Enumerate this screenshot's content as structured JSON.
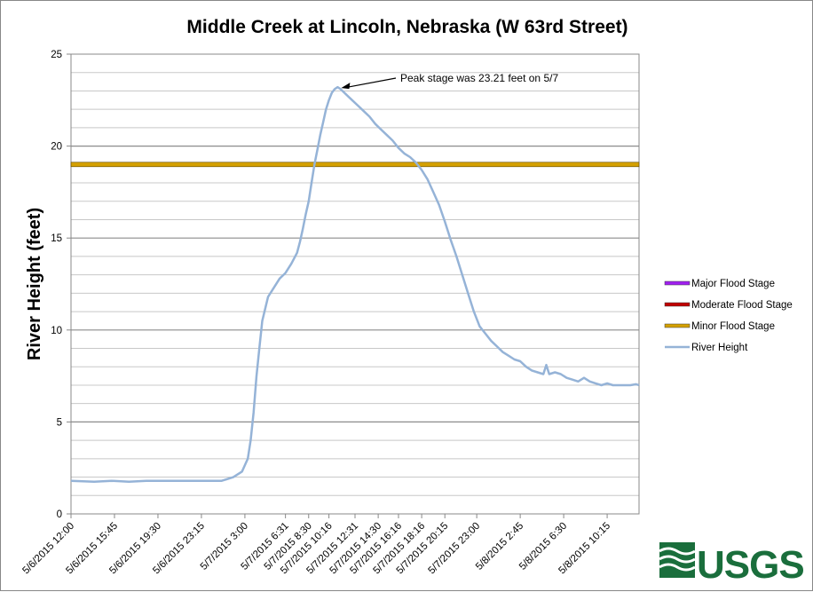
{
  "chart_data": {
    "type": "line",
    "title": "Middle Creek at Lincoln, Nebraska (W 63rd Street)",
    "ylabel": "River Height (feet)",
    "xlabel": "",
    "ylim": [
      0,
      25
    ],
    "y_major_ticks": [
      0,
      5,
      10,
      15,
      20,
      25
    ],
    "y_minor_step": 1,
    "grid": true,
    "x_tick_labels": [
      "5/6/2015 12:00",
      "5/6/2015 15:45",
      "5/6/2015 19:30",
      "5/6/2015 23:15",
      "5/7/2015 3:00",
      "5/7/2015 6:31",
      "5/7/2015 8:30",
      "5/7/2015 10:16",
      "5/7/2015 12:31",
      "5/7/2015 14:30",
      "5/7/2015 16:16",
      "5/7/2015 18:16",
      "5/7/2015 20:15",
      "5/7/2015 23:00",
      "5/8/2015 2:45",
      "5/8/2015 6:30",
      "5/8/2015 10:15"
    ],
    "x_tick_index": [
      0,
      15,
      30,
      45,
      60,
      74,
      82,
      89,
      98,
      106,
      113,
      121,
      129,
      140,
      155,
      170,
      185
    ],
    "x_count": 197,
    "legend_position": "right",
    "series": [
      {
        "name": "Major Flood Stage",
        "color": "#a020f0",
        "values": []
      },
      {
        "name": "Moderate Flood Stage",
        "color": "#c00000",
        "values": []
      },
      {
        "name": "Minor Flood Stage",
        "color": "#d4a000",
        "constant": 19
      },
      {
        "name": "River Height",
        "color": "#95b3d7",
        "points": [
          [
            0,
            1.8
          ],
          [
            8,
            1.75
          ],
          [
            14,
            1.8
          ],
          [
            20,
            1.75
          ],
          [
            26,
            1.8
          ],
          [
            35,
            1.8
          ],
          [
            45,
            1.8
          ],
          [
            52,
            1.8
          ],
          [
            56,
            2.0
          ],
          [
            59,
            2.3
          ],
          [
            61,
            3.0
          ],
          [
            62,
            4.0
          ],
          [
            63,
            5.5
          ],
          [
            64,
            7.5
          ],
          [
            65,
            9.0
          ],
          [
            66,
            10.5
          ],
          [
            68,
            11.8
          ],
          [
            70,
            12.3
          ],
          [
            72,
            12.8
          ],
          [
            74,
            13.1
          ],
          [
            76,
            13.6
          ],
          [
            78,
            14.2
          ],
          [
            79,
            14.8
          ],
          [
            80,
            15.5
          ],
          [
            81,
            16.3
          ],
          [
            82,
            17.0
          ],
          [
            83,
            18.0
          ],
          [
            84,
            19.0
          ],
          [
            85,
            19.8
          ],
          [
            86,
            20.6
          ],
          [
            87,
            21.3
          ],
          [
            88,
            22.0
          ],
          [
            89,
            22.5
          ],
          [
            90,
            22.9
          ],
          [
            91,
            23.1
          ],
          [
            92,
            23.21
          ],
          [
            93,
            23.1
          ],
          [
            95,
            22.8
          ],
          [
            97,
            22.5
          ],
          [
            99,
            22.2
          ],
          [
            101,
            21.9
          ],
          [
            103,
            21.6
          ],
          [
            105,
            21.2
          ],
          [
            107,
            20.9
          ],
          [
            109,
            20.6
          ],
          [
            111,
            20.3
          ],
          [
            113,
            19.9
          ],
          [
            115,
            19.6
          ],
          [
            117,
            19.4
          ],
          [
            119,
            19.1
          ],
          [
            121,
            18.7
          ],
          [
            123,
            18.2
          ],
          [
            125,
            17.5
          ],
          [
            127,
            16.8
          ],
          [
            129,
            15.9
          ],
          [
            131,
            14.9
          ],
          [
            133,
            14.0
          ],
          [
            135,
            13.0
          ],
          [
            137,
            12.0
          ],
          [
            139,
            11.0
          ],
          [
            141,
            10.2
          ],
          [
            143,
            9.8
          ],
          [
            145,
            9.4
          ],
          [
            147,
            9.1
          ],
          [
            149,
            8.8
          ],
          [
            151,
            8.6
          ],
          [
            153,
            8.4
          ],
          [
            155,
            8.3
          ],
          [
            157,
            8.0
          ],
          [
            159,
            7.8
          ],
          [
            161,
            7.7
          ],
          [
            163,
            7.6
          ],
          [
            164,
            8.1
          ],
          [
            165,
            7.6
          ],
          [
            167,
            7.7
          ],
          [
            169,
            7.6
          ],
          [
            171,
            7.4
          ],
          [
            173,
            7.3
          ],
          [
            175,
            7.2
          ],
          [
            177,
            7.4
          ],
          [
            179,
            7.2
          ],
          [
            181,
            7.1
          ],
          [
            183,
            7.0
          ],
          [
            185,
            7.1
          ],
          [
            187,
            7.0
          ],
          [
            189,
            7.0
          ],
          [
            191,
            7.0
          ],
          [
            193,
            7.0
          ],
          [
            195,
            7.05
          ],
          [
            196,
            7.0
          ]
        ]
      }
    ],
    "annotation": {
      "text": "Peak stage was 23.21 feet on 5/7",
      "target_x_index": 92,
      "target_y": 23.21
    }
  },
  "logo": {
    "text": "USGS",
    "color": "#1a6e3c"
  }
}
